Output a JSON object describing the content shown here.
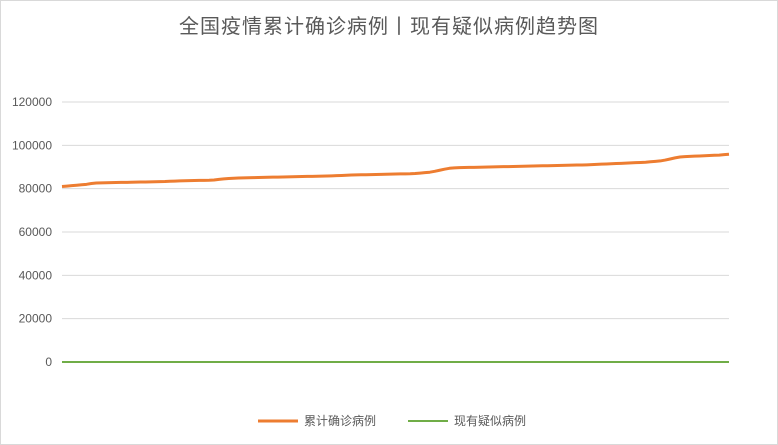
{
  "chart_data": {
    "type": "line",
    "title": "全国疫情累计确诊病例丨现有疑似病例趋势图",
    "ylim": [
      0,
      120000
    ],
    "yticks": [
      0,
      20000,
      40000,
      60000,
      80000,
      100000,
      120000
    ],
    "grid": true,
    "legend_position": "bottom",
    "series": [
      {
        "name": "累计确诊病例",
        "color": "#ed7d31",
        "values": [
          81000,
          81200,
          81400,
          81600,
          81800,
          82000,
          82400,
          82600,
          82700,
          82750,
          82800,
          82850,
          82900,
          82900,
          82950,
          83000,
          83050,
          83100,
          83150,
          83200,
          83250,
          83300,
          83400,
          83500,
          83600,
          83650,
          83700,
          83750,
          83800,
          83850,
          83900,
          84000,
          84300,
          84500,
          84700,
          84800,
          84900,
          85000,
          85050,
          85100,
          85150,
          85200,
          85250,
          85300,
          85350,
          85400,
          85450,
          85500,
          85550,
          85600,
          85650,
          85700,
          85750,
          85800,
          85850,
          85900,
          86000,
          86100,
          86200,
          86300,
          86350,
          86400,
          86450,
          86500,
          86550,
          86600,
          86650,
          86700,
          86750,
          86800,
          86850,
          86900,
          87000,
          87200,
          87400,
          87600,
          88000,
          88500,
          89000,
          89400,
          89600,
          89700,
          89750,
          89800,
          89850,
          89900,
          89950,
          90000,
          90050,
          90100,
          90150,
          90200,
          90250,
          90300,
          90350,
          90400,
          90450,
          90500,
          90550,
          90600,
          90650,
          90700,
          90750,
          90800,
          90850,
          90900,
          90950,
          91000,
          91100,
          91200,
          91300,
          91400,
          91500,
          91600,
          91700,
          91800,
          91900,
          92000,
          92100,
          92200,
          92400,
          92600,
          92800,
          93200,
          93700,
          94200,
          94600,
          94800,
          94900,
          95000,
          95100,
          95200,
          95300,
          95400,
          95500,
          95700,
          95900
        ]
      },
      {
        "name": "现有疑似病例",
        "color": "#70ad47",
        "values": [
          5,
          5,
          4,
          4,
          4,
          3,
          3,
          3,
          3,
          2,
          2,
          2,
          2,
          2,
          2,
          2,
          2,
          2,
          2,
          2,
          2,
          2,
          2,
          2,
          2,
          2,
          2,
          2,
          2,
          2,
          2,
          2,
          2,
          2,
          2,
          2,
          2,
          2,
          2,
          2,
          2,
          2,
          2,
          2,
          2,
          2,
          2,
          2,
          2,
          2,
          2,
          2,
          2,
          2,
          2,
          2,
          2,
          2,
          2,
          2,
          2,
          2,
          2,
          2,
          2,
          2,
          2,
          2,
          2,
          2,
          2,
          2,
          2,
          2,
          2,
          2,
          2,
          2,
          2,
          2,
          2,
          2,
          2,
          2,
          2,
          2,
          2,
          2,
          2,
          2,
          2,
          2,
          2,
          2,
          2,
          2,
          2,
          2,
          2,
          2,
          2,
          2,
          2,
          2,
          2,
          2,
          2,
          2,
          2,
          2,
          2,
          2,
          2,
          2,
          2,
          2,
          2,
          2,
          2,
          2,
          2,
          2,
          2,
          2,
          2,
          2,
          2,
          2,
          2,
          2,
          2,
          2,
          2,
          2,
          2,
          2,
          2
        ]
      }
    ]
  }
}
